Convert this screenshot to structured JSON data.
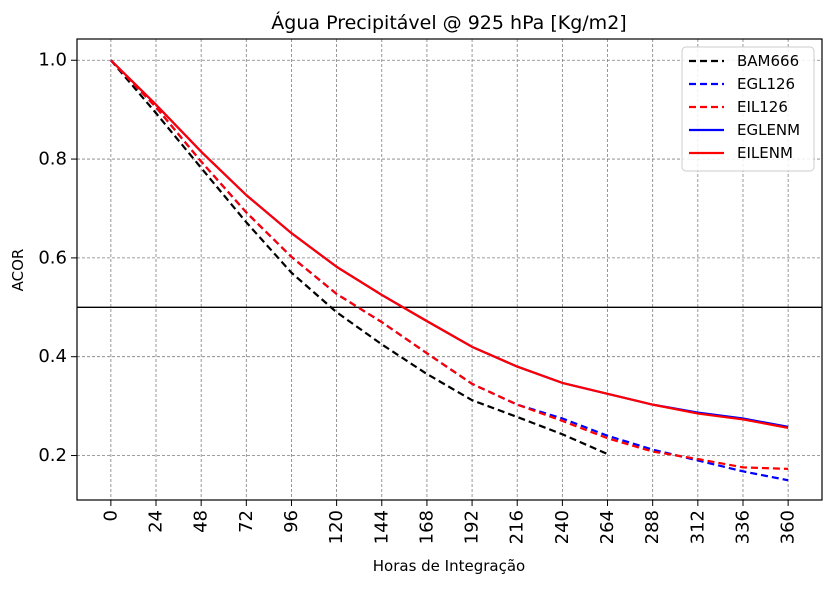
{
  "chart_data": {
    "type": "line",
    "title": "Água Precipitável @ 925 hPa [Kg/m2]",
    "xlabel": "Horas de Integração",
    "ylabel": "ACOR",
    "xlim": [
      -18,
      378
    ],
    "ylim": [
      0.11,
      1.043
    ],
    "xticks": [
      0,
      24,
      48,
      72,
      96,
      120,
      144,
      168,
      192,
      216,
      240,
      264,
      288,
      312,
      336,
      360
    ],
    "yticks": [
      0.2,
      0.4,
      0.6,
      0.8,
      1.0
    ],
    "ytick_labels": [
      "0.2",
      "0.4",
      "0.6",
      "0.8",
      "1.0"
    ],
    "grid": true,
    "reference_line": 0.5,
    "legend_position": "top-right",
    "series": [
      {
        "name": "BAM666",
        "color": "#000000",
        "dash": "dashed",
        "x": [
          0,
          24,
          48,
          72,
          96,
          120,
          144,
          168,
          192,
          216,
          240,
          264
        ],
        "values": [
          1.0,
          0.893,
          0.782,
          0.672,
          0.57,
          0.49,
          0.425,
          0.365,
          0.312,
          0.278,
          0.243,
          0.203
        ]
      },
      {
        "name": "EGL126",
        "color": "#0000ff",
        "dash": "dashed",
        "x": [
          0,
          24,
          48,
          72,
          96,
          120,
          144,
          168,
          192,
          216,
          240,
          264,
          288,
          312,
          336,
          360
        ],
        "values": [
          1.0,
          0.905,
          0.795,
          0.692,
          0.602,
          0.527,
          0.47,
          0.407,
          0.345,
          0.303,
          0.275,
          0.24,
          0.212,
          0.19,
          0.168,
          0.15
        ]
      },
      {
        "name": "EIL126",
        "color": "#ff0000",
        "dash": "dashed",
        "x": [
          0,
          24,
          48,
          72,
          96,
          120,
          144,
          168,
          192,
          216,
          240,
          264,
          288,
          312,
          336,
          360
        ],
        "values": [
          1.0,
          0.905,
          0.795,
          0.692,
          0.602,
          0.527,
          0.47,
          0.407,
          0.345,
          0.303,
          0.27,
          0.235,
          0.208,
          0.193,
          0.176,
          0.173
        ]
      },
      {
        "name": "EGLENM",
        "color": "#0000ff",
        "dash": "solid",
        "x": [
          0,
          24,
          48,
          72,
          96,
          120,
          144,
          168,
          192,
          216,
          240,
          264,
          288,
          312,
          336,
          360
        ],
        "values": [
          1.0,
          0.91,
          0.815,
          0.727,
          0.65,
          0.582,
          0.525,
          0.472,
          0.42,
          0.38,
          0.347,
          0.325,
          0.303,
          0.287,
          0.275,
          0.258
        ]
      },
      {
        "name": "EILENM",
        "color": "#ff0000",
        "dash": "solid",
        "x": [
          0,
          24,
          48,
          72,
          96,
          120,
          144,
          168,
          192,
          216,
          240,
          264,
          288,
          312,
          336,
          360
        ],
        "values": [
          1.0,
          0.91,
          0.815,
          0.727,
          0.65,
          0.582,
          0.525,
          0.472,
          0.42,
          0.38,
          0.347,
          0.325,
          0.303,
          0.285,
          0.273,
          0.256
        ]
      }
    ]
  }
}
